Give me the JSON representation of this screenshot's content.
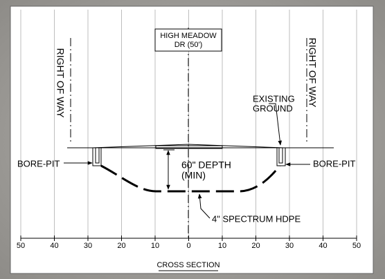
{
  "road_label": [
    "HIGH MEADOW",
    "DR (50')"
  ],
  "right_of_way_left": "RIGHT OF WAY",
  "right_of_way_right": "RIGHT OF WAY",
  "existing_ground": [
    "EXISTING",
    "GROUND"
  ],
  "bore_pit_left": "BORE-PIT",
  "bore_pit_right": "BORE-PIT",
  "depth": [
    "60\" DEPTH",
    "(MIN)"
  ],
  "pipe": "4\" SPECTRUM HDPE",
  "caption": "CROSS SECTION",
  "scale": {
    "xlim": [
      -50,
      50
    ],
    "ticks": [
      {
        "value": -50,
        "label": "50"
      },
      {
        "value": -40,
        "label": "40"
      },
      {
        "value": -30,
        "label": "30"
      },
      {
        "value": -20,
        "label": "20"
      },
      {
        "value": -10,
        "label": "10"
      },
      0,
      10,
      20,
      30,
      40,
      50
    ]
  }
}
